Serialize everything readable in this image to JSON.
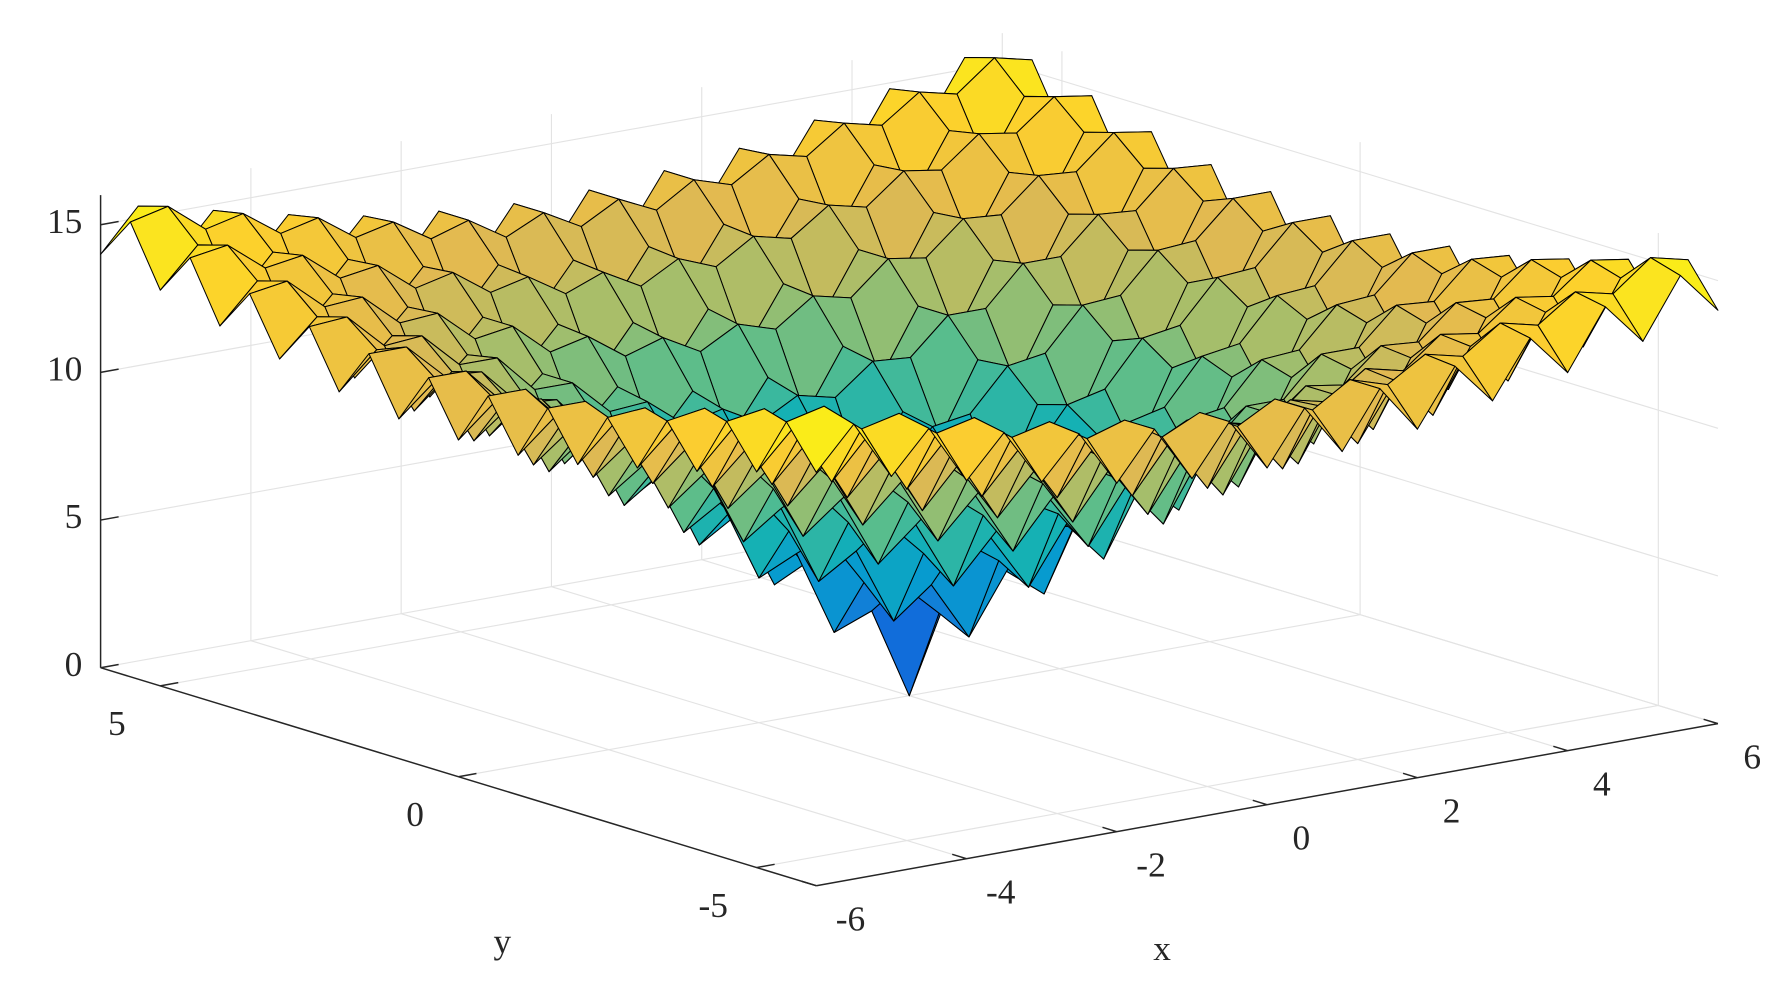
{
  "chart_data": {
    "type": "surface",
    "colormap": "parula",
    "grid": true,
    "xlabel": "x",
    "ylabel": "y",
    "xlim": [
      -6,
      6
    ],
    "ylim": [
      -6,
      6
    ],
    "zlim": [
      0,
      16
    ],
    "xticks": [
      -6,
      -4,
      -2,
      0,
      2,
      4,
      6
    ],
    "yticks": [
      -5,
      0,
      5
    ],
    "zticks": [
      0,
      5,
      10,
      15
    ],
    "x": [
      -6,
      -5.5,
      -5,
      -4.5,
      -4,
      -3.5,
      -3,
      -2.5,
      -2,
      -1.5,
      -1,
      -0.5,
      0,
      0.5,
      1,
      1.5,
      2,
      2.5,
      3,
      3.5,
      4,
      4.5,
      5,
      5.5,
      6
    ],
    "y": [
      -6,
      -5.5,
      -5,
      -4.5,
      -4,
      -3.5,
      -3,
      -2.5,
      -2,
      -1.5,
      -1,
      -0.5,
      0,
      0.5,
      1,
      1.5,
      2,
      2.5,
      3,
      3.5,
      4,
      4.5,
      5,
      5.5,
      6
    ],
    "z": [
      [
        14.0,
        15.4,
        13.4,
        14.8,
        12.8,
        14.2,
        12.3,
        13.7,
        11.8,
        13.4,
        11.5,
        13.2,
        11.4,
        13.2,
        11.5,
        13.4,
        11.8,
        13.7,
        12.3,
        14.2,
        12.8,
        14.8,
        13.4,
        15.4,
        14.0
      ],
      [
        15.4,
        15.7,
        14.7,
        15.0,
        14.1,
        14.4,
        13.5,
        13.8,
        13.0,
        13.4,
        12.6,
        13.2,
        12.5,
        13.2,
        12.6,
        13.4,
        13.0,
        13.8,
        13.5,
        14.4,
        14.1,
        15.0,
        14.7,
        15.7,
        15.4
      ],
      [
        13.4,
        14.7,
        12.6,
        14.0,
        11.9,
        13.3,
        11.2,
        12.6,
        10.7,
        12.2,
        10.3,
        11.9,
        10.1,
        11.9,
        10.3,
        12.2,
        10.7,
        12.6,
        11.2,
        13.3,
        11.9,
        14.0,
        12.6,
        14.7,
        13.4
      ],
      [
        14.8,
        15.0,
        14.0,
        14.2,
        13.2,
        13.4,
        12.4,
        12.7,
        11.8,
        12.1,
        11.3,
        11.8,
        11.1,
        11.8,
        11.3,
        12.1,
        11.8,
        12.7,
        12.4,
        13.4,
        13.2,
        14.2,
        14.0,
        15.0,
        14.8
      ],
      [
        12.8,
        14.1,
        11.9,
        13.2,
        11.0,
        12.3,
        10.1,
        11.5,
        9.4,
        10.8,
        8.8,
        10.4,
        8.6,
        10.4,
        8.8,
        10.8,
        9.4,
        11.5,
        10.1,
        12.3,
        11.0,
        13.2,
        11.9,
        14.1,
        12.8
      ],
      [
        14.2,
        14.4,
        13.3,
        13.4,
        12.3,
        12.4,
        11.3,
        11.5,
        10.4,
        10.7,
        9.8,
        10.2,
        9.5,
        10.2,
        9.8,
        10.7,
        10.4,
        11.5,
        11.3,
        12.4,
        12.3,
        13.4,
        13.3,
        14.4,
        14.2
      ],
      [
        12.3,
        13.5,
        11.2,
        12.4,
        10.1,
        11.3,
        9.0,
        10.2,
        8.0,
        9.3,
        7.2,
        8.7,
        6.9,
        8.7,
        7.2,
        9.3,
        8.0,
        10.2,
        9.0,
        11.3,
        10.1,
        12.4,
        11.2,
        13.5,
        12.3
      ],
      [
        13.7,
        13.8,
        12.6,
        12.7,
        11.5,
        11.5,
        10.2,
        10.2,
        9.0,
        9.1,
        8.1,
        8.4,
        7.7,
        8.4,
        8.1,
        9.1,
        9.0,
        10.2,
        10.2,
        11.5,
        11.5,
        12.7,
        12.6,
        13.8,
        13.7
      ],
      [
        11.8,
        13.0,
        10.7,
        11.8,
        9.4,
        10.4,
        8.0,
        9.0,
        6.6,
        7.7,
        5.4,
        6.8,
        4.9,
        6.8,
        5.4,
        7.7,
        6.6,
        9.0,
        8.0,
        10.4,
        9.4,
        11.8,
        10.7,
        13.0,
        11.8
      ],
      [
        13.4,
        13.4,
        12.2,
        12.1,
        10.8,
        10.7,
        9.3,
        9.1,
        7.7,
        7.5,
        6.2,
        6.4,
        5.5,
        6.4,
        6.2,
        7.5,
        7.7,
        9.1,
        9.3,
        10.7,
        10.8,
        12.1,
        12.2,
        13.4,
        13.4
      ],
      [
        11.5,
        12.6,
        10.3,
        11.3,
        8.8,
        9.8,
        7.2,
        8.1,
        5.4,
        6.2,
        3.6,
        4.6,
        2.6,
        4.6,
        3.6,
        6.2,
        5.4,
        8.1,
        7.2,
        9.8,
        8.8,
        11.3,
        10.3,
        12.6,
        11.5
      ],
      [
        13.2,
        13.2,
        11.9,
        11.8,
        10.4,
        10.2,
        8.7,
        8.4,
        6.8,
        6.4,
        4.6,
        4.3,
        3.1,
        4.3,
        4.6,
        6.4,
        6.8,
        8.4,
        8.7,
        10.2,
        10.4,
        11.8,
        11.9,
        13.2,
        13.2
      ],
      [
        11.4,
        12.5,
        10.1,
        11.1,
        8.6,
        9.5,
        6.9,
        7.7,
        4.9,
        5.5,
        2.6,
        3.1,
        0,
        3.1,
        2.6,
        5.5,
        4.9,
        7.7,
        6.9,
        9.5,
        8.6,
        11.1,
        10.1,
        12.5,
        11.4
      ],
      [
        13.2,
        13.2,
        11.9,
        11.8,
        10.4,
        10.2,
        8.7,
        8.4,
        6.8,
        6.4,
        4.6,
        4.3,
        3.1,
        4.3,
        4.6,
        6.4,
        6.8,
        8.4,
        8.7,
        10.2,
        10.4,
        11.8,
        11.9,
        13.2,
        13.2
      ],
      [
        11.5,
        12.6,
        10.3,
        11.3,
        8.8,
        9.8,
        7.2,
        8.1,
        5.4,
        6.2,
        3.6,
        4.6,
        2.6,
        4.6,
        3.6,
        6.2,
        5.4,
        8.1,
        7.2,
        9.8,
        8.8,
        11.3,
        10.3,
        12.6,
        11.5
      ],
      [
        13.4,
        13.4,
        12.2,
        12.1,
        10.8,
        10.7,
        9.3,
        9.1,
        7.7,
        7.5,
        6.2,
        6.4,
        5.5,
        6.4,
        6.2,
        7.5,
        7.7,
        9.1,
        9.3,
        10.7,
        10.8,
        12.1,
        12.2,
        13.4,
        13.4
      ],
      [
        11.8,
        13.0,
        10.7,
        11.8,
        9.4,
        10.4,
        8.0,
        9.0,
        6.6,
        7.7,
        5.4,
        6.8,
        4.9,
        6.8,
        5.4,
        7.7,
        6.6,
        9.0,
        8.0,
        10.4,
        9.4,
        11.8,
        10.7,
        13.0,
        11.8
      ],
      [
        13.7,
        13.8,
        12.6,
        12.7,
        11.5,
        11.5,
        10.2,
        10.2,
        9.0,
        9.1,
        8.1,
        8.4,
        7.7,
        8.4,
        8.1,
        9.1,
        9.0,
        10.2,
        10.2,
        11.5,
        11.5,
        12.7,
        12.6,
        13.8,
        13.7
      ],
      [
        12.3,
        13.5,
        11.2,
        12.4,
        10.1,
        11.3,
        9.0,
        10.2,
        8.0,
        9.3,
        7.2,
        8.7,
        6.9,
        8.7,
        7.2,
        9.3,
        8.0,
        10.2,
        9.0,
        11.3,
        10.1,
        12.4,
        11.2,
        13.5,
        12.3
      ],
      [
        14.2,
        14.4,
        13.3,
        13.4,
        12.3,
        12.4,
        11.3,
        11.5,
        10.4,
        10.7,
        9.8,
        10.2,
        9.5,
        10.2,
        9.8,
        10.7,
        10.4,
        11.5,
        11.3,
        12.4,
        12.3,
        13.4,
        13.3,
        14.4,
        14.2
      ],
      [
        12.8,
        14.1,
        11.9,
        13.2,
        11.0,
        12.3,
        10.1,
        11.5,
        9.4,
        10.8,
        8.8,
        10.4,
        8.6,
        10.4,
        8.8,
        10.8,
        9.4,
        11.5,
        10.1,
        12.3,
        11.0,
        13.2,
        11.9,
        14.1,
        12.8
      ],
      [
        14.8,
        15.0,
        14.0,
        14.2,
        13.2,
        13.4,
        12.4,
        12.7,
        11.8,
        12.1,
        11.3,
        11.8,
        11.1,
        11.8,
        11.3,
        12.1,
        11.8,
        12.7,
        12.4,
        13.4,
        13.2,
        14.2,
        14.0,
        15.0,
        14.8
      ],
      [
        13.4,
        14.7,
        12.6,
        14.0,
        11.9,
        13.3,
        11.2,
        12.6,
        10.7,
        12.2,
        10.3,
        11.9,
        10.1,
        11.9,
        10.3,
        12.2,
        10.7,
        12.6,
        11.2,
        13.3,
        11.9,
        14.0,
        12.6,
        14.7,
        13.4
      ],
      [
        15.4,
        15.7,
        14.7,
        15.0,
        14.1,
        14.4,
        13.5,
        13.8,
        13.0,
        13.4,
        12.6,
        13.2,
        12.5,
        13.2,
        12.6,
        13.4,
        13.0,
        13.8,
        13.5,
        14.4,
        14.1,
        15.0,
        14.7,
        15.7,
        15.4
      ],
      [
        14.0,
        15.4,
        13.4,
        14.8,
        12.8,
        14.2,
        12.3,
        13.7,
        11.8,
        13.4,
        11.5,
        13.2,
        11.4,
        13.2,
        11.5,
        13.4,
        11.8,
        13.7,
        12.3,
        14.2,
        12.8,
        14.8,
        13.4,
        15.4,
        14.0
      ]
    ]
  }
}
